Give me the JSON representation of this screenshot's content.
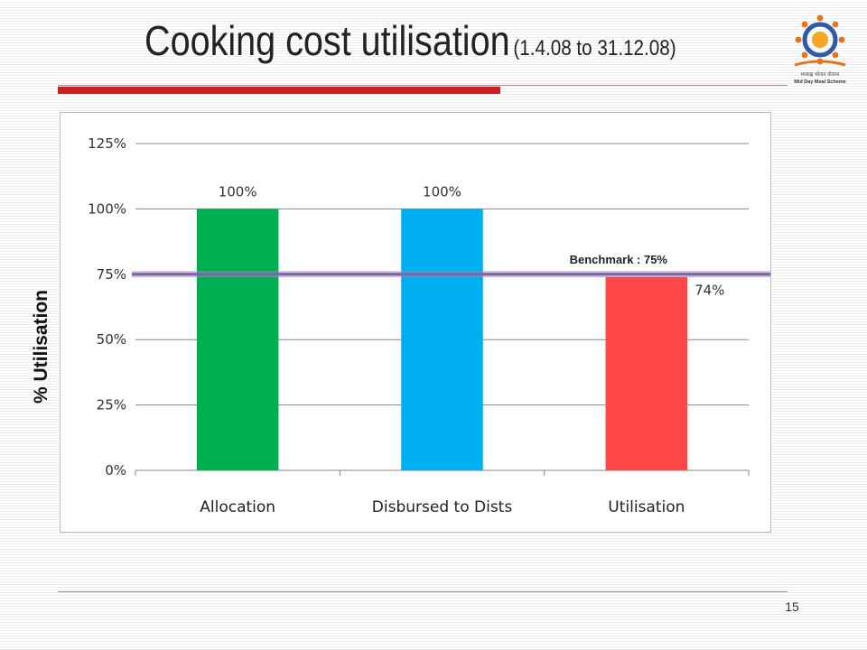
{
  "slide": {
    "title": "Cooking cost utilisation",
    "subtitle": "(1.4.08 to 31.12.08)",
    "page_number": "15",
    "logo": {
      "icon": "mid-day-meal-scheme-logo",
      "caption_line1": "मध्याह्न भोजन योजना",
      "caption_line2": "Mid Day Meal Scheme"
    }
  },
  "chart_data": {
    "type": "bar",
    "categories": [
      "Allocation",
      "Disbursed to Dists",
      "Utilisation"
    ],
    "values": [
      100,
      100,
      74
    ],
    "data_labels": [
      "100%",
      "100%",
      "74%"
    ],
    "bar_colors": [
      "#00b050",
      "#00b0f0",
      "#ff4747"
    ],
    "ylabel": "% Utilisation",
    "ylim": [
      0,
      125
    ],
    "yticks": [
      0,
      25,
      50,
      75,
      100,
      125
    ],
    "ytick_labels": [
      "0%",
      "25%",
      "50%",
      "75%",
      "100%",
      "125%"
    ],
    "grid": true,
    "benchmark": {
      "value": 75,
      "label": "Benchmark : 75%",
      "color": "#7d64a8"
    }
  }
}
